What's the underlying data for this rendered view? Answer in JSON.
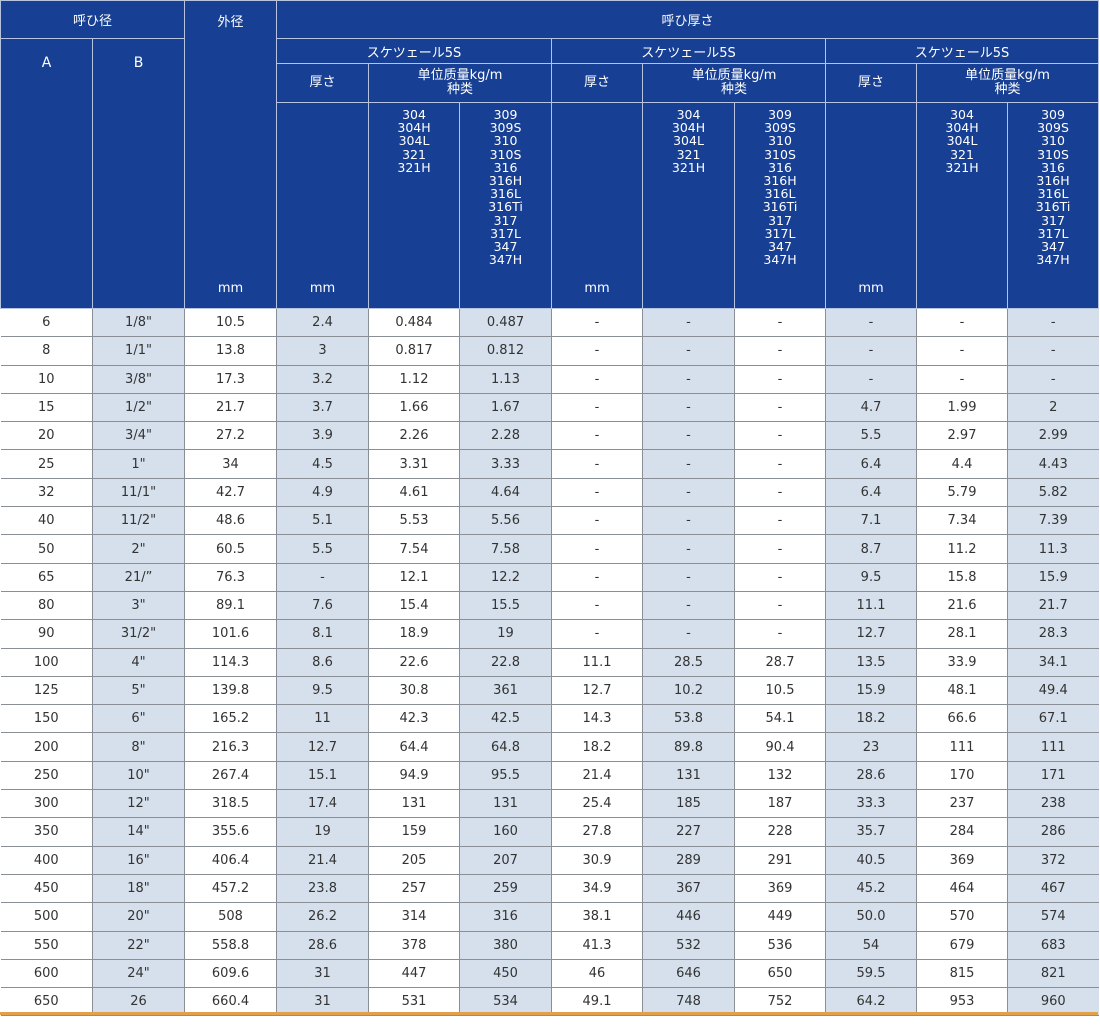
{
  "header": {
    "nominal_size": "呼ひ径",
    "col_a": "A",
    "col_b": "B",
    "outer_diameter": "外径",
    "outer_diameter_unit": "mm",
    "nominal_thickness": "呼ひ厚さ",
    "groups": [
      {
        "schedule": "スケツェール5S",
        "thickness": "厚さ",
        "thickness_unit": "mm",
        "unit_mass": "单位质量kg/m\n种类",
        "grades_a": "304\n304H\n304L\n321\n321H",
        "grades_b": "309\n309S\n310\n310S\n316\n316H\n316L\n316Ti\n317\n317L\n347\n347H"
      },
      {
        "schedule": "スケツェール5S",
        "thickness": "厚さ",
        "thickness_unit": "mm",
        "unit_mass": "单位质量kg/m\n种类",
        "grades_a": "304\n304H\n304L\n321\n321H",
        "grades_b": "309\n309S\n310\n310S\n316\n316H\n316L\n316Ti\n317\n317L\n347\n347H"
      },
      {
        "schedule": "スケツェール5S",
        "thickness": "厚さ",
        "thickness_unit": "mm",
        "unit_mass": "单位质量kg/m\n种类",
        "grades_a": "304\n304H\n304L\n321\n321H",
        "grades_b": "309\n309S\n310\n310S\n316\n316H\n316L\n316Ti\n317\n317L\n347\n347H"
      }
    ]
  },
  "rows": [
    [
      "6",
      "1/8\"",
      "10.5",
      "2.4",
      "0.484",
      "0.487",
      "-",
      "-",
      "-",
      "-",
      "-",
      "-"
    ],
    [
      "8",
      "1/1\"",
      "13.8",
      "3",
      "0.817",
      "0.812",
      "-",
      "-",
      "-",
      "-",
      "-",
      "-"
    ],
    [
      "10",
      "3/8\"",
      "17.3",
      "3.2",
      "1.12",
      "1.13",
      "-",
      "-",
      "-",
      "-",
      "-",
      "-"
    ],
    [
      "15",
      "1/2\"",
      "21.7",
      "3.7",
      "1.66",
      "1.67",
      "-",
      "-",
      "-",
      "4.7",
      "1.99",
      "2"
    ],
    [
      "20",
      "3/4\"",
      "27.2",
      "3.9",
      "2.26",
      "2.28",
      "-",
      "-",
      "-",
      "5.5",
      "2.97",
      "2.99"
    ],
    [
      "25",
      "1\"",
      "34",
      "4.5",
      "3.31",
      "3.33",
      "-",
      "-",
      "-",
      "6.4",
      "4.4",
      "4.43"
    ],
    [
      "32",
      "11/1\"",
      "42.7",
      "4.9",
      "4.61",
      "4.64",
      "-",
      "-",
      "-",
      "6.4",
      "5.79",
      "5.82"
    ],
    [
      "40",
      "11/2\"",
      "48.6",
      "5.1",
      "5.53",
      "5.56",
      "-",
      "-",
      "-",
      "7.1",
      "7.34",
      "7.39"
    ],
    [
      "50",
      "2\"",
      "60.5",
      "5.5",
      "7.54",
      "7.58",
      "-",
      "-",
      "-",
      "8.7",
      "11.2",
      "11.3"
    ],
    [
      "65",
      "21/”",
      "76.3",
      "-",
      "12.1",
      "12.2",
      "-",
      "-",
      "-",
      "9.5",
      "15.8",
      "15.9"
    ],
    [
      "80",
      "3\"",
      "89.1",
      "7.6",
      "15.4",
      "15.5",
      "-",
      "-",
      "-",
      "11.1",
      "21.6",
      "21.7"
    ],
    [
      "90",
      "31/2\"",
      "101.6",
      "8.1",
      "18.9",
      "19",
      "-",
      "-",
      "-",
      "12.7",
      "28.1",
      "28.3"
    ],
    [
      "100",
      "4\"",
      "114.3",
      "8.6",
      "22.6",
      "22.8",
      "11.1",
      "28.5",
      "28.7",
      "13.5",
      "33.9",
      "34.1"
    ],
    [
      "125",
      "5\"",
      "139.8",
      "9.5",
      "30.8",
      "361",
      "12.7",
      "10.2",
      "10.5",
      "15.9",
      "48.1",
      "49.4"
    ],
    [
      "150",
      "6\"",
      "165.2",
      "11",
      "42.3",
      "42.5",
      "14.3",
      "53.8",
      "54.1",
      "18.2",
      "66.6",
      "67.1"
    ],
    [
      "200",
      "8\"",
      "216.3",
      "12.7",
      "64.4",
      "64.8",
      "18.2",
      "89.8",
      "90.4",
      "23",
      "111",
      "111"
    ],
    [
      "250",
      "10\"",
      "267.4",
      "15.1",
      "94.9",
      "95.5",
      "21.4",
      "131",
      "132",
      "28.6",
      "170",
      "171"
    ],
    [
      "300",
      "12\"",
      "318.5",
      "17.4",
      "131",
      "131",
      "25.4",
      "185",
      "187",
      "33.3",
      "237",
      "238"
    ],
    [
      "350",
      "14\"",
      "355.6",
      "19",
      "159",
      "160",
      "27.8",
      "227",
      "228",
      "35.7",
      "284",
      "286"
    ],
    [
      "400",
      "16\"",
      "406.4",
      "21.4",
      "205",
      "207",
      "30.9",
      "289",
      "291",
      "40.5",
      "369",
      "372"
    ],
    [
      "450",
      "18\"",
      "457.2",
      "23.8",
      "257",
      "259",
      "34.9",
      "367",
      "369",
      "45.2",
      "464",
      "467"
    ],
    [
      "500",
      "20\"",
      "508",
      "26.2",
      "314",
      "316",
      "38.1",
      "446",
      "449",
      "50.0",
      "570",
      "574"
    ],
    [
      "550",
      "22\"",
      "558.8",
      "28.6",
      "378",
      "380",
      "41.3",
      "532",
      "536",
      "54",
      "679",
      "683"
    ],
    [
      "600",
      "24\"",
      "609.6",
      "31",
      "447",
      "450",
      "46",
      "646",
      "650",
      "59.5",
      "815",
      "821"
    ],
    [
      "650",
      "26",
      "660.4",
      "31",
      "531",
      "534",
      "49.1",
      "748",
      "752",
      "64.2",
      "953",
      "960"
    ]
  ]
}
